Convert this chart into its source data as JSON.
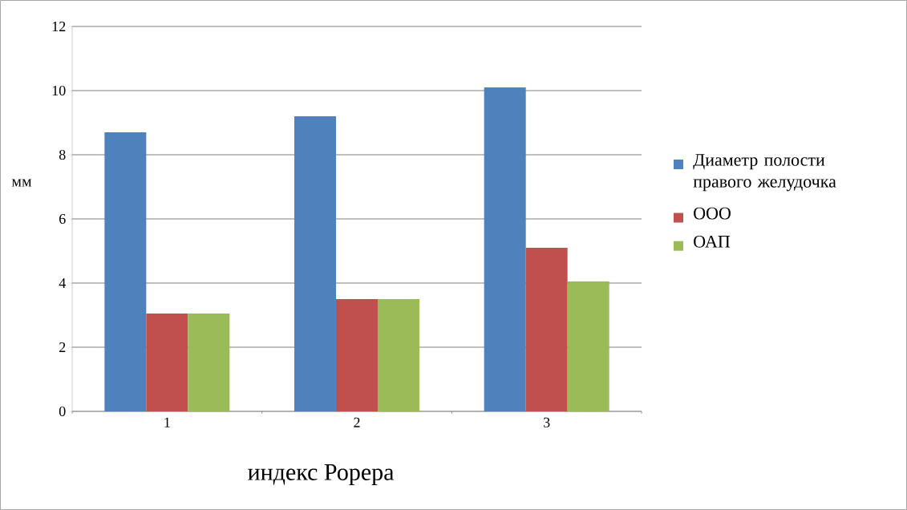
{
  "chart_data": {
    "type": "bar",
    "xlabel": "индекс Рорера",
    "ylabel": "мм",
    "categories": [
      "1",
      "2",
      "3"
    ],
    "series": [
      {
        "name": "Диаметр полости правого желудочка",
        "color": "#4f81bd",
        "values": [
          8.7,
          9.2,
          10.1
        ]
      },
      {
        "name": "ООО",
        "color": "#c0504d",
        "values": [
          3.05,
          3.5,
          5.1
        ]
      },
      {
        "name": "ОАП",
        "color": "#9bbb59",
        "values": [
          3.05,
          3.5,
          4.05
        ]
      }
    ],
    "ylim": [
      0,
      12
    ],
    "yticks": [
      0,
      2,
      4,
      6,
      8,
      10,
      12
    ],
    "grid": "y",
    "legend": "right"
  }
}
